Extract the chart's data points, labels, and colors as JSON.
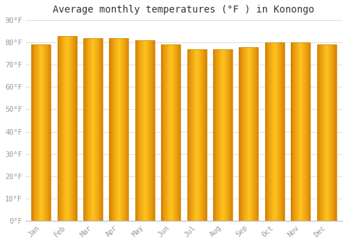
{
  "title": "Average monthly temperatures (°F ) in Konongo",
  "months": [
    "Jan",
    "Feb",
    "Mar",
    "Apr",
    "May",
    "Jun",
    "Jul",
    "Aug",
    "Sep",
    "Oct",
    "Nov",
    "Dec"
  ],
  "values": [
    79,
    83,
    82,
    82,
    81,
    79,
    77,
    77,
    78,
    80,
    80,
    79
  ],
  "color_dark": [
    210,
    120,
    0
  ],
  "color_light": [
    255,
    195,
    30
  ],
  "background_color": "#FFFFFF",
  "grid_color": "#DDDDDD",
  "ylim": [
    0,
    90
  ],
  "yticks": [
    0,
    10,
    20,
    30,
    40,
    50,
    60,
    70,
    80,
    90
  ],
  "ytick_labels": [
    "0°F",
    "10°F",
    "20°F",
    "30°F",
    "40°F",
    "50°F",
    "60°F",
    "70°F",
    "80°F",
    "90°F"
  ],
  "title_fontsize": 10,
  "tick_fontsize": 7.5,
  "tick_color": "#999999",
  "bar_width": 0.75,
  "bar_edge_color": "#CC8800",
  "bar_edge_width": 0.5,
  "figsize": [
    5.0,
    3.5
  ],
  "dpi": 100
}
